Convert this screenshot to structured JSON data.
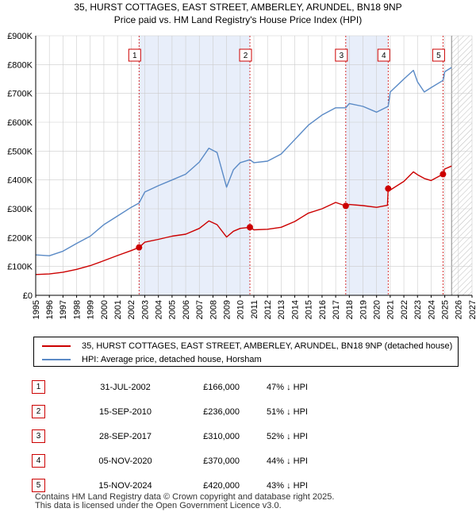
{
  "chart_data": {
    "type": "line",
    "title": "35, HURST COTTAGES, EAST STREET, AMBERLEY, ARUNDEL, BN18 9NP",
    "subtitle": "Price paid vs. HM Land Registry's House Price Index (HPI)",
    "xlim": [
      1995,
      2027
    ],
    "ylim": [
      0,
      900000
    ],
    "y_ticks": [
      {
        "value": 0,
        "label": "£0"
      },
      {
        "value": 100000,
        "label": "£100K"
      },
      {
        "value": 200000,
        "label": "£200K"
      },
      {
        "value": 300000,
        "label": "£300K"
      },
      {
        "value": 400000,
        "label": "£400K"
      },
      {
        "value": 500000,
        "label": "£500K"
      },
      {
        "value": 600000,
        "label": "£600K"
      },
      {
        "value": 700000,
        "label": "£700K"
      },
      {
        "value": 800000,
        "label": "£800K"
      },
      {
        "value": 900000,
        "label": "£900K"
      }
    ],
    "x_ticks": [
      "1995",
      "1996",
      "1997",
      "1998",
      "1999",
      "2000",
      "2001",
      "2002",
      "2003",
      "2004",
      "2005",
      "2006",
      "2007",
      "2008",
      "2009",
      "2010",
      "2011",
      "2012",
      "2013",
      "2014",
      "2015",
      "2016",
      "2017",
      "2018",
      "2019",
      "2020",
      "2021",
      "2022",
      "2023",
      "2024",
      "2025",
      "2026",
      "2027"
    ],
    "shaded_ranges": [
      [
        2002.58,
        2010.71
      ],
      [
        2017.74,
        2020.85
      ]
    ],
    "future_hatch_from": 2025.5,
    "series": [
      {
        "name": "35, HURST COTTAGES, EAST STREET, AMBERLEY, ARUNDEL, BN18 9NP (detached house)",
        "color": "#cc0000",
        "x": [
          1995,
          1996,
          1997,
          1998,
          1999,
          2000,
          2001,
          2002,
          2002.58,
          2003,
          2004,
          2005,
          2006,
          2007,
          2007.7,
          2008.3,
          2009,
          2009.5,
          2010,
          2010.71,
          2011,
          2012,
          2013,
          2014,
          2015,
          2016,
          2017,
          2017.74,
          2018,
          2019,
          2020,
          2020.8,
          2020.85,
          2021,
          2022,
          2022.7,
          2023,
          2023.5,
          2024,
          2024.87,
          2025,
          2025.5
        ],
        "y": [
          72000,
          74000,
          80000,
          90000,
          103000,
          120000,
          138000,
          155000,
          166000,
          184000,
          194000,
          205000,
          212000,
          232000,
          258000,
          245000,
          202000,
          222000,
          232000,
          236000,
          227000,
          229000,
          236000,
          256000,
          285000,
          300000,
          322000,
          310000,
          315000,
          311000,
          305000,
          312000,
          370000,
          365000,
          395000,
          428000,
          418000,
          405000,
          398000,
          420000,
          438000,
          448000
        ]
      },
      {
        "name": "HPI: Average price, detached house, Horsham",
        "color": "#5a8ac6",
        "x": [
          1995,
          1996,
          1997,
          1998,
          1999,
          2000,
          2001,
          2002,
          2002.58,
          2003,
          2004,
          2005,
          2006,
          2007,
          2007.7,
          2008.3,
          2009,
          2009.5,
          2010,
          2010.71,
          2011,
          2012,
          2013,
          2014,
          2015,
          2016,
          2017,
          2017.74,
          2018,
          2019,
          2020,
          2020.85,
          2021,
          2022,
          2022.7,
          2023,
          2023.5,
          2024,
          2024.87,
          2025,
          2025.5
        ],
        "y": [
          140000,
          137000,
          153000,
          180000,
          205000,
          245000,
          275000,
          305000,
          320000,
          358000,
          380000,
          400000,
          420000,
          462000,
          510000,
          495000,
          375000,
          435000,
          460000,
          470000,
          460000,
          465000,
          490000,
          540000,
          590000,
          625000,
          650000,
          650000,
          665000,
          655000,
          635000,
          655000,
          705000,
          750000,
          780000,
          740000,
          705000,
          720000,
          745000,
          775000,
          790000
        ]
      }
    ],
    "sales": [
      {
        "n": "1",
        "x": 2002.58,
        "y": 166000
      },
      {
        "n": "2",
        "x": 2010.71,
        "y": 236000
      },
      {
        "n": "3",
        "x": 2017.74,
        "y": 310000
      },
      {
        "n": "4",
        "x": 2020.85,
        "y": 370000
      },
      {
        "n": "5",
        "x": 2024.87,
        "y": 420000
      }
    ]
  },
  "legend": {
    "property": "35, HURST COTTAGES, EAST STREET, AMBERLEY, ARUNDEL, BN18 9NP (detached house)",
    "hpi": "HPI: Average price, detached house, Horsham"
  },
  "table": [
    {
      "n": "1",
      "date": "31-JUL-2002",
      "price": "£166,000",
      "hpi": "47% ↓ HPI"
    },
    {
      "n": "2",
      "date": "15-SEP-2010",
      "price": "£236,000",
      "hpi": "51% ↓ HPI"
    },
    {
      "n": "3",
      "date": "28-SEP-2017",
      "price": "£310,000",
      "hpi": "52% ↓ HPI"
    },
    {
      "n": "4",
      "date": "05-NOV-2020",
      "price": "£370,000",
      "hpi": "44% ↓ HPI"
    },
    {
      "n": "5",
      "date": "15-NOV-2024",
      "price": "£420,000",
      "hpi": "43% ↓ HPI"
    }
  ],
  "footer": {
    "line1": "Contains HM Land Registry data © Crown copyright and database right 2025.",
    "line2": "This data is licensed under the Open Government Licence v3.0."
  },
  "colors": {
    "property": "#cc0000",
    "hpi": "#5a8ac6",
    "shade": "#e8eefa",
    "grid": "#cccccc"
  }
}
